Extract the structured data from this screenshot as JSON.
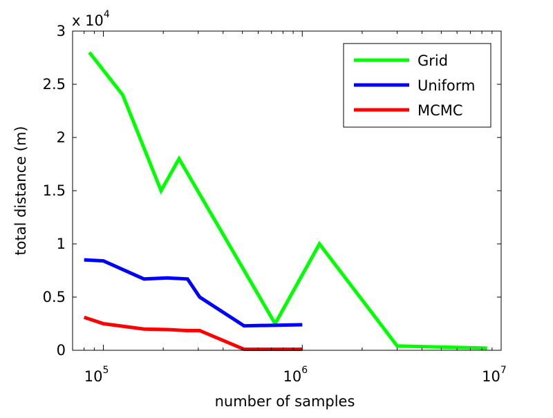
{
  "chart_data": {
    "type": "line",
    "xlabel": "number of samples",
    "ylabel": "total distance (m)",
    "x_scale": "log",
    "xlim": [
      70000,
      10000000
    ],
    "ylim": [
      0,
      30000
    ],
    "y_multiplier": {
      "base": "x 10",
      "exponent": "4"
    },
    "xticks": [
      {
        "value": 100000,
        "base": "10",
        "exponent": "5"
      },
      {
        "value": 1000000,
        "base": "10",
        "exponent": "6"
      },
      {
        "value": 10000000,
        "base": "10",
        "exponent": "7"
      }
    ],
    "yticks": [
      {
        "value": 0,
        "label": "0"
      },
      {
        "value": 5000,
        "label": "0.5"
      },
      {
        "value": 10000,
        "label": "1"
      },
      {
        "value": 15000,
        "label": "1.5"
      },
      {
        "value": 20000,
        "label": "2"
      },
      {
        "value": 25000,
        "label": "2.5"
      },
      {
        "value": 30000,
        "label": "3"
      }
    ],
    "grid": false,
    "legend_position": "top-right",
    "series": [
      {
        "name": "Grid",
        "color": "#00ff00",
        "points": [
          [
            85000,
            28000
          ],
          [
            125000,
            24000
          ],
          [
            195000,
            15000
          ],
          [
            240000,
            18000
          ],
          [
            730000,
            2500
          ],
          [
            1220000,
            10000
          ],
          [
            3000000,
            400
          ],
          [
            8500000,
            200
          ]
        ]
      },
      {
        "name": "Uniform",
        "color": "#0000ff",
        "points": [
          [
            80000,
            8500
          ],
          [
            100000,
            8400
          ],
          [
            160000,
            6700
          ],
          [
            210000,
            6800
          ],
          [
            265000,
            6700
          ],
          [
            305000,
            5000
          ],
          [
            510000,
            2300
          ],
          [
            1000000,
            2400
          ]
        ]
      },
      {
        "name": "MCMC",
        "color": "#ff0000",
        "points": [
          [
            80000,
            3100
          ],
          [
            100000,
            2500
          ],
          [
            160000,
            2000
          ],
          [
            210000,
            1950
          ],
          [
            265000,
            1850
          ],
          [
            305000,
            1850
          ],
          [
            510000,
            100
          ],
          [
            1000000,
            100
          ]
        ]
      }
    ]
  }
}
